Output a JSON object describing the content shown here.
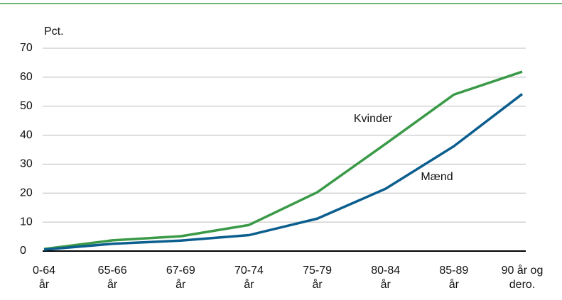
{
  "chart_data": {
    "type": "line",
    "y_label": "Pct.",
    "categories": [
      "0-64\når",
      "65-66\når",
      "67-69\når",
      "70-74\når",
      "75-79\når",
      "80-84\når",
      "85-89\når",
      "90 år og\ndero."
    ],
    "series": [
      {
        "name": "Kvinder",
        "color": "#3a9a48",
        "values": [
          0.7,
          3.7,
          5.1,
          9.0,
          20.3,
          37.0,
          54.0,
          61.9
        ]
      },
      {
        "name": "Mænd",
        "color": "#0b5e8e",
        "values": [
          0.5,
          2.5,
          3.6,
          5.5,
          11.2,
          21.5,
          36.2,
          54.2
        ]
      }
    ],
    "ylim": [
      0,
      70
    ],
    "yticks": [
      0,
      10,
      20,
      30,
      40,
      50,
      60,
      70
    ],
    "grid": true
  }
}
